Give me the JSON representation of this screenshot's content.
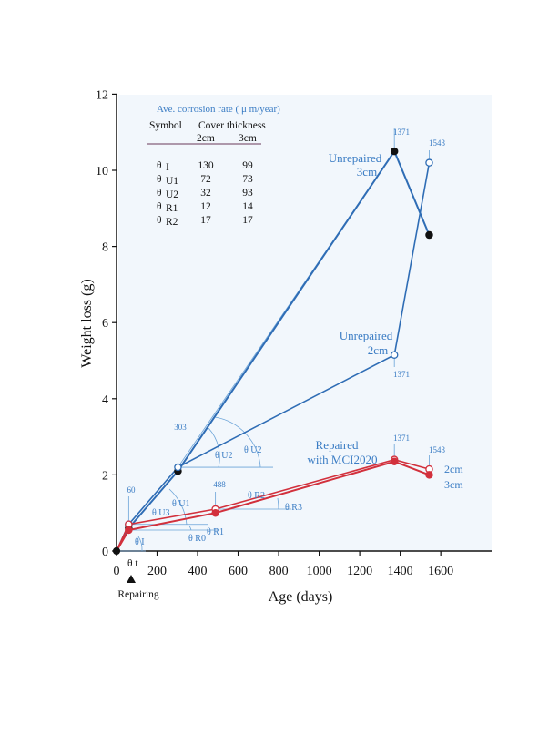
{
  "chart_data": {
    "type": "line",
    "xlabel": "Age (days)",
    "ylabel": "Weight loss   (g)",
    "xlim": [
      0,
      1800
    ],
    "ylim": [
      0,
      12
    ],
    "x_ticks": [
      "0",
      "200",
      "400",
      "600",
      "800",
      "1000",
      "1200",
      "1400",
      "1600"
    ],
    "y_ticks": [
      "0",
      "2",
      "4",
      "6",
      "8",
      "10",
      "12"
    ],
    "grid": false,
    "series": [
      {
        "name": "Unrepaired 3cm",
        "color": "#2f6db5",
        "marker": "filled",
        "points": [
          [
            0,
            0
          ],
          [
            60,
            0.6
          ],
          [
            303,
            2.1
          ],
          [
            1371,
            10.5
          ],
          [
            1543,
            8.3
          ]
        ]
      },
      {
        "name": "Unrepaired 2cm",
        "color": "#2f6db5",
        "marker": "open",
        "points": [
          [
            0,
            0
          ],
          [
            60,
            0.7
          ],
          [
            303,
            2.2
          ],
          [
            1371,
            5.15
          ],
          [
            1543,
            10.2
          ]
        ]
      },
      {
        "name": "Repaired 2cm",
        "color": "#d2303c",
        "marker": "open",
        "points": [
          [
            0,
            0
          ],
          [
            60,
            0.7
          ],
          [
            488,
            1.1
          ],
          [
            1371,
            2.4
          ],
          [
            1543,
            2.15
          ]
        ]
      },
      {
        "name": "Repaired 3cm",
        "color": "#d2303c",
        "marker": "filled",
        "points": [
          [
            0,
            0
          ],
          [
            60,
            0.55
          ],
          [
            488,
            1.0
          ],
          [
            1371,
            2.35
          ],
          [
            1543,
            2.0
          ]
        ]
      }
    ],
    "annotations": {
      "unrepaired_3cm": [
        "Unrepaired",
        "3cm"
      ],
      "unrepaired_2cm": [
        "Unrepaired",
        "2cm"
      ],
      "repaired": [
        "Repaired",
        "with MCI2020"
      ],
      "repaired_2cm": "2cm",
      "repaired_3cm": "3cm",
      "day_labels": [
        "60",
        "303",
        "488",
        "1371",
        "1543",
        "1371",
        "1371",
        "1543"
      ],
      "theta_labels": [
        "θ U2",
        "θ U1",
        "θ U3",
        "θ I",
        "θ R1",
        "θ R0",
        "θ R2",
        "θ R3",
        "θ t"
      ],
      "repairing": "Repairing"
    },
    "rate_table": {
      "title": "Ave. corrosion rate ( μ m/year)",
      "symbol_header": "Symbol",
      "thickness_header": "Cover thickness",
      "col_2cm": "2cm",
      "col_3cm": "3cm",
      "rows": [
        {
          "symbol": "θ",
          "sub": "I",
          "v2": "130",
          "v3": "99",
          "red": false
        },
        {
          "symbol": "θ",
          "sub": "U1",
          "v2": "72",
          "v3": "73",
          "red": false
        },
        {
          "symbol": "θ",
          "sub": "U2",
          "v2": "32",
          "v3": "93",
          "red": false
        },
        {
          "symbol": "θ",
          "sub": "R1",
          "v2": "12",
          "v3": "14",
          "red": true
        },
        {
          "symbol": "θ",
          "sub": "R2",
          "v2": "17",
          "v3": "17",
          "red": true
        }
      ]
    }
  }
}
